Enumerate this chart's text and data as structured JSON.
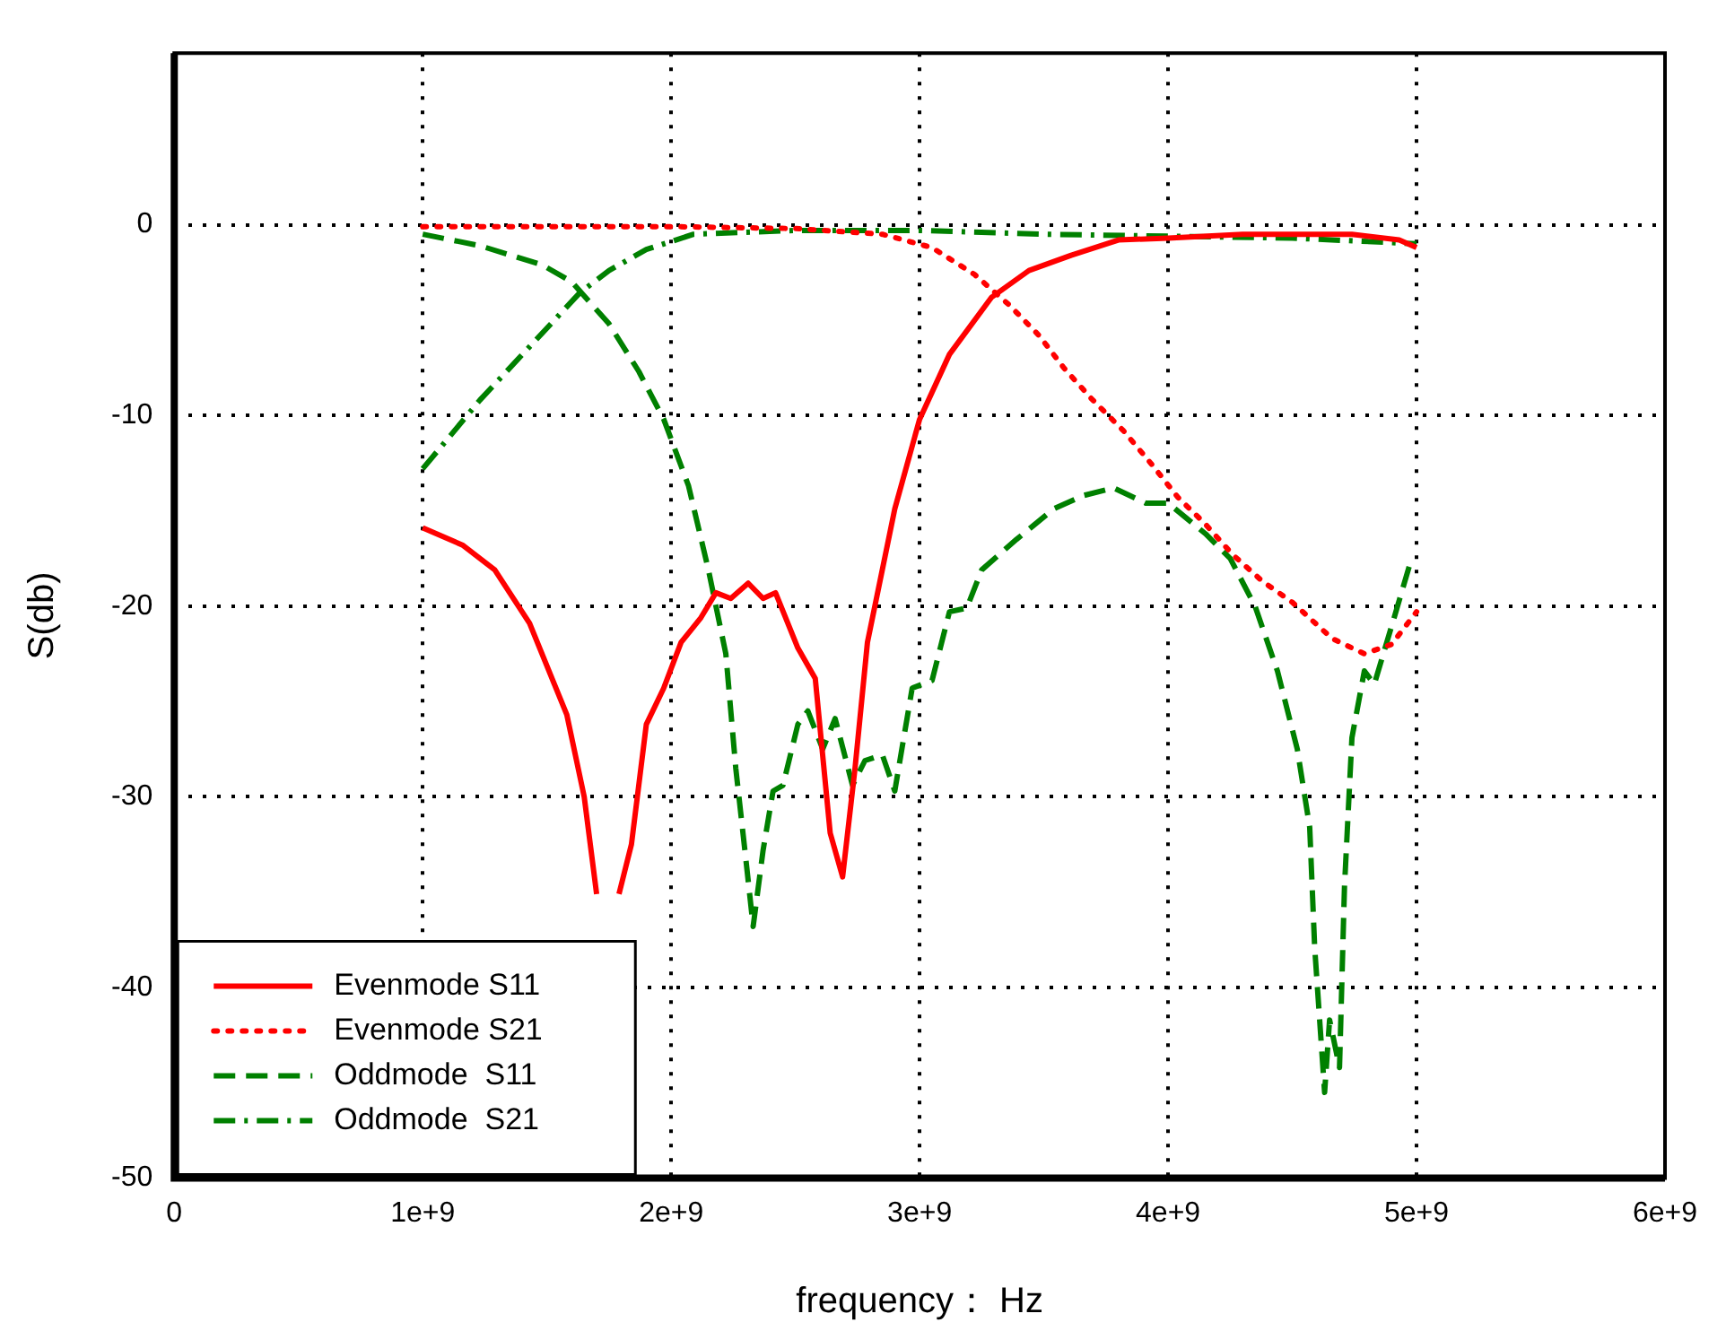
{
  "chart_data": {
    "type": "line",
    "xlabel": "frequency： Hz",
    "ylabel": "S(db)",
    "xlim": [
      0,
      6000000000
    ],
    "ylim": [
      -50,
      9
    ],
    "xticks": [
      0,
      {
        "value": 1000000000,
        "label": "1e+9"
      },
      {
        "value": 2000000000,
        "label": "2e+9"
      },
      {
        "value": 3000000000,
        "label": "3e+9"
      },
      {
        "value": 4000000000,
        "label": "4e+9"
      },
      {
        "value": 5000000000,
        "label": "5e+9"
      },
      {
        "value": 6000000000,
        "label": "6e+9"
      }
    ],
    "yticks": [
      -50,
      -40,
      -30,
      -20,
      -10,
      0
    ],
    "grid": true,
    "legend": "bottom left",
    "marker": "none",
    "series": [
      {
        "name": "Evenmode S11",
        "color": "#ff0000",
        "line_style": "solid",
        "x": [
          1000000000.0,
          1160000000.0,
          1290000000.0,
          1430000000.0,
          1580000000.0,
          1650000000.0,
          1700000000.0,
          1750000000.0,
          1790000000.0,
          1840000000.0,
          1900000000.0,
          1970000000.0,
          2040000000.0,
          2120000000.0,
          2180000000.0,
          2240000000.0,
          2310000000.0,
          2370000000.0,
          2420000000.0,
          2510000000.0,
          2580000000.0,
          2640000000.0,
          2690000000.0,
          2740000000.0,
          2790000000.0,
          2900000000.0,
          3000000000.0,
          3120000000.0,
          3290000000.0,
          3440000000.0,
          3610000000.0,
          3800000000.0,
          4000000000.0,
          4300000000.0,
          4590000000.0,
          4740000000.0,
          4930000000.0,
          5000000000.0
        ],
        "values": [
          -15.9,
          -16.8,
          -18.1,
          -20.9,
          -25.7,
          -30,
          -35.1,
          null,
          -35.1,
          -32.5,
          -26.2,
          -24.3,
          -21.9,
          -20.6,
          -19.3,
          -19.6,
          -18.8,
          -19.6,
          -19.3,
          -22.2,
          -23.8,
          -31.9,
          -34.2,
          -28.5,
          -21.9,
          -14.9,
          -10.2,
          -6.8,
          -3.8,
          -2.4,
          -1.6,
          -0.8,
          -0.7,
          -0.5,
          -0.5,
          -0.5,
          -0.8,
          -1.2
        ]
      },
      {
        "name": "Evenmode S21",
        "color": "#ff0000",
        "line_style": "dotted",
        "x": [
          1000000000.0,
          1500000000.0,
          2000000000.0,
          2500000000.0,
          2850000000.0,
          3050000000.0,
          3220000000.0,
          3360000000.0,
          3480000000.0,
          3580000000.0,
          3690000000.0,
          3820000000.0,
          3930000000.0,
          4040000000.0,
          4150000000.0,
          4260000000.0,
          4380000000.0,
          4500000000.0,
          4660000000.0,
          4790000000.0,
          4900000000.0,
          5000000000.0
        ],
        "values": [
          -0.1,
          -0.1,
          -0.1,
          -0.2,
          -0.5,
          -1.2,
          -2.6,
          -4.2,
          -5.8,
          -7.5,
          -9.1,
          -10.8,
          -12.5,
          -14.3,
          -15.7,
          -17.3,
          -18.7,
          -19.8,
          -21.7,
          -22.5,
          -22.0,
          -20.3
        ]
      },
      {
        "name": "Oddmode  S11",
        "color": "#008000",
        "line_style": "dashed",
        "x": [
          1000000000.0,
          1230000000.0,
          1480000000.0,
          1600000000.0,
          1750000000.0,
          1870000000.0,
          1970000000.0,
          2070000000.0,
          2150000000.0,
          2220000000.0,
          2260000000.0,
          2300000000.0,
          2330000000.0,
          2370000000.0,
          2410000000.0,
          2450000000.0,
          2510000000.0,
          2550000000.0,
          2610000000.0,
          2660000000.0,
          2730000000.0,
          2780000000.0,
          2850000000.0,
          2900000000.0,
          2970000000.0,
          3050000000.0,
          3120000000.0,
          3190000000.0,
          3250000000.0,
          3390000000.0,
          3540000000.0,
          3660000000.0,
          3780000000.0,
          3910000000.0,
          4000000000.0,
          4150000000.0,
          4250000000.0,
          4350000000.0,
          4440000000.0,
          4520000000.0,
          4570000000.0,
          4590000000.0,
          4630000000.0,
          4650000000.0,
          4690000000.0,
          4710000000.0,
          4740000000.0,
          4790000000.0,
          4830000000.0,
          4910000000.0,
          4980000000.0
        ],
        "values": [
          -0.5,
          -1.1,
          -2.1,
          -3.0,
          -5.2,
          -7.7,
          -10.2,
          -13.7,
          -18.1,
          -22.5,
          -28.5,
          -33.2,
          -36.8,
          -32.8,
          -29.7,
          -29.4,
          -26.2,
          -25.5,
          -27.5,
          -25.9,
          -29.4,
          -28.1,
          -27.8,
          -29.7,
          -24.3,
          -23.9,
          -20.3,
          -20.1,
          -18.1,
          -16.5,
          -14.9,
          -14.2,
          -13.8,
          -14.6,
          -14.6,
          -16.2,
          -17.5,
          -20.0,
          -23.4,
          -27.5,
          -31.6,
          -37.9,
          -45.5,
          -41.7,
          -44.2,
          -34.7,
          -26.9,
          -23.4,
          -24.1,
          -20.6,
          -17.5
        ]
      },
      {
        "name": "Oddmode  S21",
        "color": "#008000",
        "line_style": "dashdot",
        "x": [
          1000000000.0,
          1230000000.0,
          1430000000.0,
          1630000000.0,
          1750000000.0,
          1900000000.0,
          2090000000.0,
          2500000000.0,
          3000000000.0,
          3500000000.0,
          4000000000.0,
          4500000000.0,
          5000000000.0
        ],
        "values": [
          -12.8,
          -9.2,
          -6.4,
          -3.6,
          -2.4,
          -1.3,
          -0.5,
          -0.3,
          -0.3,
          -0.5,
          -0.6,
          -0.7,
          -1.0
        ]
      }
    ]
  }
}
